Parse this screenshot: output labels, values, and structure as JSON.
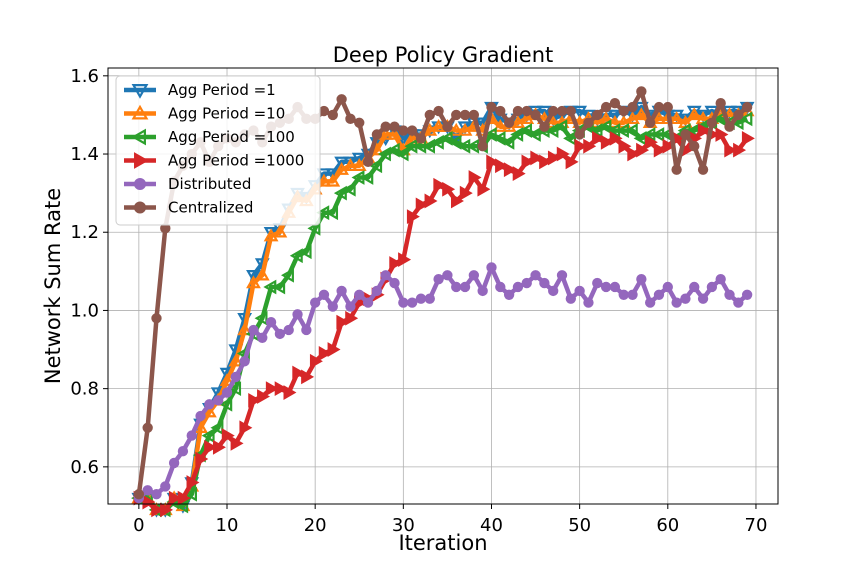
{
  "chart_data": {
    "type": "line",
    "title": "Deep Policy Gradient",
    "xlabel": "Iteration",
    "ylabel": "Network Sum Rate",
    "xlim": [
      -3.5,
      72.5
    ],
    "ylim": [
      0.505,
      1.62
    ],
    "xticks": [
      "0",
      "10",
      "20",
      "30",
      "40",
      "50",
      "60",
      "70"
    ],
    "yticks": [
      "0.6",
      "0.8",
      "1.0",
      "1.2",
      "1.4",
      "1.6"
    ],
    "grid": true,
    "legend_position": "top-left",
    "x": [
      0,
      1,
      2,
      3,
      4,
      5,
      6,
      7,
      8,
      9,
      10,
      11,
      12,
      13,
      14,
      15,
      16,
      17,
      18,
      19,
      20,
      21,
      22,
      23,
      24,
      25,
      26,
      27,
      28,
      29,
      30,
      31,
      32,
      33,
      34,
      35,
      36,
      37,
      38,
      39,
      40,
      41,
      42,
      43,
      44,
      45,
      46,
      47,
      48,
      49,
      50,
      51,
      52,
      53,
      54,
      55,
      56,
      57,
      58,
      59,
      60,
      61,
      62,
      63,
      64,
      65,
      66,
      67,
      68,
      69
    ],
    "series": [
      {
        "name": "Agg Period =1",
        "color": "#1f77b4",
        "marker": "triangle-down",
        "values": [
          0.52,
          0.52,
          0.49,
          0.49,
          0.52,
          0.5,
          0.56,
          0.71,
          0.75,
          0.79,
          0.84,
          0.9,
          0.98,
          1.09,
          1.12,
          1.2,
          1.21,
          1.26,
          1.3,
          1.29,
          1.32,
          1.35,
          1.35,
          1.38,
          1.38,
          1.39,
          1.4,
          1.43,
          1.44,
          1.46,
          1.44,
          1.45,
          1.45,
          1.46,
          1.47,
          1.47,
          1.44,
          1.47,
          1.48,
          1.48,
          1.52,
          1.49,
          1.48,
          1.49,
          1.5,
          1.51,
          1.51,
          1.49,
          1.5,
          1.51,
          1.51,
          1.5,
          1.49,
          1.5,
          1.5,
          1.51,
          1.5,
          1.52,
          1.5,
          1.51,
          1.5,
          1.5,
          1.49,
          1.51,
          1.5,
          1.51,
          1.5,
          1.51,
          1.51,
          1.52
        ]
      },
      {
        "name": "Agg Period =10",
        "color": "#ff7f0e",
        "marker": "triangle-up",
        "values": [
          0.52,
          0.52,
          0.49,
          0.49,
          0.52,
          0.5,
          0.55,
          0.7,
          0.74,
          0.77,
          0.82,
          0.87,
          0.95,
          1.07,
          1.09,
          1.19,
          1.2,
          1.25,
          1.29,
          1.28,
          1.31,
          1.33,
          1.33,
          1.36,
          1.37,
          1.37,
          1.39,
          1.41,
          1.45,
          1.45,
          1.41,
          1.44,
          1.44,
          1.46,
          1.47,
          1.47,
          1.46,
          1.46,
          1.47,
          1.46,
          1.49,
          1.47,
          1.47,
          1.48,
          1.49,
          1.5,
          1.49,
          1.48,
          1.48,
          1.49,
          1.48,
          1.49,
          1.48,
          1.49,
          1.48,
          1.48,
          1.49,
          1.5,
          1.48,
          1.49,
          1.49,
          1.49,
          1.48,
          1.5,
          1.49,
          1.49,
          1.5,
          1.5,
          1.5,
          1.51
        ]
      },
      {
        "name": "Agg Period =100",
        "color": "#2ca02c",
        "marker": "triangle-left",
        "values": [
          0.52,
          0.52,
          0.49,
          0.49,
          0.51,
          0.5,
          0.53,
          0.63,
          0.68,
          0.7,
          0.76,
          0.8,
          0.89,
          0.94,
          0.98,
          1.06,
          1.06,
          1.09,
          1.14,
          1.15,
          1.21,
          1.25,
          1.25,
          1.3,
          1.31,
          1.34,
          1.34,
          1.37,
          1.4,
          1.41,
          1.4,
          1.42,
          1.42,
          1.42,
          1.43,
          1.44,
          1.43,
          1.42,
          1.42,
          1.42,
          1.45,
          1.44,
          1.43,
          1.45,
          1.46,
          1.45,
          1.46,
          1.46,
          1.47,
          1.44,
          1.46,
          1.47,
          1.46,
          1.47,
          1.46,
          1.46,
          1.46,
          1.44,
          1.45,
          1.45,
          1.45,
          1.44,
          1.46,
          1.46,
          1.47,
          1.48,
          1.49,
          1.48,
          1.48,
          1.49
        ]
      },
      {
        "name": "Agg Period =1000",
        "color": "#d62728",
        "marker": "triangle-right",
        "values": [
          0.52,
          0.51,
          0.49,
          0.49,
          0.52,
          0.52,
          0.56,
          0.62,
          0.65,
          0.65,
          0.68,
          0.66,
          0.7,
          0.77,
          0.78,
          0.8,
          0.8,
          0.79,
          0.84,
          0.83,
          0.87,
          0.89,
          0.9,
          0.97,
          0.98,
          1.02,
          1.03,
          1.04,
          1.08,
          1.12,
          1.13,
          1.24,
          1.27,
          1.28,
          1.32,
          1.31,
          1.28,
          1.3,
          1.34,
          1.31,
          1.38,
          1.37,
          1.36,
          1.35,
          1.38,
          1.39,
          1.38,
          1.39,
          1.4,
          1.38,
          1.42,
          1.42,
          1.44,
          1.43,
          1.44,
          1.42,
          1.4,
          1.41,
          1.43,
          1.41,
          1.42,
          1.44,
          1.41,
          1.44,
          1.46,
          1.45,
          1.45,
          1.41,
          1.41,
          1.44
        ]
      },
      {
        "name": "Distributed",
        "color": "#9467bd",
        "marker": "circle",
        "values": [
          0.52,
          0.54,
          0.53,
          0.55,
          0.61,
          0.64,
          0.68,
          0.73,
          0.76,
          0.77,
          0.79,
          0.83,
          0.87,
          0.95,
          0.93,
          0.97,
          0.94,
          0.95,
          0.99,
          0.95,
          1.02,
          1.04,
          1.01,
          1.05,
          1.01,
          1.04,
          1.02,
          1.05,
          1.09,
          1.07,
          1.02,
          1.02,
          1.03,
          1.03,
          1.08,
          1.09,
          1.06,
          1.06,
          1.09,
          1.05,
          1.11,
          1.06,
          1.04,
          1.06,
          1.07,
          1.09,
          1.07,
          1.05,
          1.09,
          1.03,
          1.05,
          1.02,
          1.07,
          1.06,
          1.06,
          1.04,
          1.04,
          1.08,
          1.02,
          1.04,
          1.06,
          1.02,
          1.03,
          1.06,
          1.03,
          1.06,
          1.08,
          1.04,
          1.02,
          1.04
        ]
      },
      {
        "name": "Centralized",
        "color": "#8c564b",
        "marker": "circle",
        "values": [
          0.53,
          0.7,
          0.98,
          1.21,
          1.33,
          1.37,
          1.4,
          1.43,
          1.38,
          1.42,
          1.44,
          1.43,
          1.45,
          1.46,
          1.43,
          1.47,
          1.48,
          1.49,
          1.52,
          1.49,
          1.49,
          1.51,
          1.5,
          1.54,
          1.49,
          1.48,
          1.38,
          1.45,
          1.47,
          1.47,
          1.46,
          1.46,
          1.44,
          1.5,
          1.51,
          1.47,
          1.5,
          1.5,
          1.5,
          1.42,
          1.52,
          1.51,
          1.48,
          1.51,
          1.51,
          1.5,
          1.47,
          1.51,
          1.51,
          1.51,
          1.45,
          1.48,
          1.5,
          1.52,
          1.53,
          1.51,
          1.52,
          1.56,
          1.48,
          1.52,
          1.52,
          1.36,
          1.45,
          1.42,
          1.36,
          1.48,
          1.53,
          1.47,
          1.5,
          1.52
        ]
      }
    ]
  }
}
